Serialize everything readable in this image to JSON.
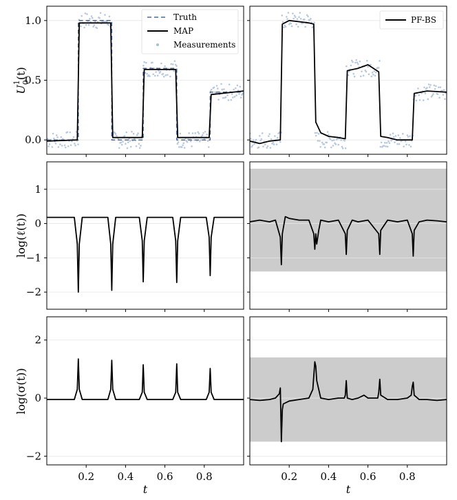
{
  "chart_data": [
    {
      "type": "line",
      "panel": "top-left",
      "ylabel": "U_0^1(t)",
      "ylim": [
        -0.12,
        1.12
      ],
      "yticks": [
        "0.0",
        "0.5",
        "1.0"
      ],
      "legend": {
        "location": "top-right",
        "entries": [
          "Truth",
          "MAP",
          "Measurements"
        ]
      },
      "series": [
        {
          "name": "Truth",
          "style": "dashed",
          "color": "#4a6a9a",
          "x": [
            0,
            0.16,
            0.16,
            0.33,
            0.33,
            0.49,
            0.49,
            0.66,
            0.66,
            0.83,
            0.83,
            1.0
          ],
          "y": [
            0,
            0,
            1.0,
            1.0,
            0,
            0,
            0.6,
            0.6,
            0,
            0,
            0.4,
            0.4
          ]
        },
        {
          "name": "MAP",
          "style": "solid",
          "color": "#000000",
          "x": [
            0,
            0.155,
            0.165,
            0.325,
            0.335,
            0.485,
            0.495,
            0.655,
            0.665,
            0.825,
            0.835,
            1.0
          ],
          "y": [
            -0.01,
            0.0,
            0.98,
            0.98,
            0.02,
            0.02,
            0.59,
            0.59,
            0.02,
            0.02,
            0.38,
            0.41
          ]
        }
      ],
      "xlim": [
        0,
        1
      ]
    },
    {
      "type": "line",
      "panel": "top-right",
      "ylim": [
        -0.12,
        1.12
      ],
      "legend": {
        "location": "top-right",
        "entries": [
          "PF-BS"
        ]
      },
      "series": [
        {
          "name": "PF-BS",
          "style": "solid",
          "color": "#000000",
          "x": [
            0,
            0.05,
            0.1,
            0.155,
            0.165,
            0.2,
            0.25,
            0.3,
            0.325,
            0.335,
            0.36,
            0.4,
            0.45,
            0.485,
            0.495,
            0.55,
            0.6,
            0.655,
            0.665,
            0.7,
            0.75,
            0.8,
            0.825,
            0.835,
            0.9,
            1.0
          ],
          "y": [
            -0.01,
            -0.03,
            -0.01,
            0.0,
            0.97,
            1.0,
            0.99,
            0.98,
            0.97,
            0.15,
            0.06,
            0.03,
            0.02,
            0.01,
            0.58,
            0.6,
            0.63,
            0.57,
            0.03,
            0.02,
            0.0,
            0.0,
            0.0,
            0.39,
            0.41,
            0.4
          ]
        }
      ],
      "xlim": [
        0,
        1
      ]
    },
    {
      "type": "line",
      "panel": "middle-left",
      "ylabel": "log(ℓ(t))",
      "ylim": [
        -2.5,
        1.8
      ],
      "yticks": [
        "−2",
        "−1",
        "0",
        "1"
      ],
      "series": [
        {
          "name": "",
          "style": "solid",
          "color": "#000000",
          "x": [
            0,
            0.14,
            0.155,
            0.16,
            0.165,
            0.18,
            0.31,
            0.325,
            0.33,
            0.335,
            0.35,
            0.47,
            0.485,
            0.49,
            0.495,
            0.51,
            0.64,
            0.655,
            0.66,
            0.665,
            0.68,
            0.81,
            0.825,
            0.83,
            0.835,
            0.85,
            1.0
          ],
          "y": [
            0.18,
            0.18,
            -0.6,
            -2.0,
            -0.6,
            0.18,
            0.18,
            -0.6,
            -1.95,
            -0.6,
            0.18,
            0.18,
            -0.5,
            -1.7,
            -0.5,
            0.18,
            0.18,
            -0.5,
            -1.72,
            -0.5,
            0.18,
            0.18,
            -0.4,
            -1.52,
            -0.4,
            0.18,
            0.18
          ]
        }
      ],
      "xlim": [
        0,
        1
      ]
    },
    {
      "type": "area",
      "panel": "middle-right",
      "ylim": [
        -2.5,
        1.8
      ],
      "band": {
        "color": "#cccccc",
        "lower": -1.4,
        "upper": 1.6
      },
      "series": [
        {
          "name": "",
          "style": "solid",
          "color": "#000000",
          "x": [
            0,
            0.05,
            0.1,
            0.13,
            0.155,
            0.16,
            0.165,
            0.18,
            0.2,
            0.25,
            0.3,
            0.325,
            0.33,
            0.335,
            0.34,
            0.35,
            0.36,
            0.4,
            0.45,
            0.485,
            0.49,
            0.495,
            0.52,
            0.55,
            0.6,
            0.655,
            0.66,
            0.665,
            0.7,
            0.75,
            0.8,
            0.825,
            0.83,
            0.835,
            0.86,
            0.9,
            0.95,
            1.0
          ],
          "y": [
            0.05,
            0.1,
            0.05,
            0.1,
            -0.4,
            -1.2,
            -0.3,
            0.2,
            0.15,
            0.1,
            0.1,
            -0.3,
            -0.75,
            -0.3,
            -0.6,
            -0.2,
            0.1,
            0.05,
            0.1,
            -0.3,
            -0.9,
            -0.2,
            0.1,
            0.05,
            0.1,
            -0.3,
            -0.9,
            -0.2,
            0.1,
            0.05,
            0.1,
            -0.3,
            -0.95,
            -0.2,
            0.05,
            0.1,
            0.08,
            0.05
          ]
        }
      ],
      "xlim": [
        0,
        1
      ]
    },
    {
      "type": "line",
      "panel": "bottom-left",
      "ylabel": "log(σ(t))",
      "ylim": [
        -2.3,
        2.8
      ],
      "yticks": [
        "−2",
        "0",
        "2"
      ],
      "xlabel": "t",
      "xticks": [
        "0.2",
        "0.4",
        "0.6",
        "0.8"
      ],
      "series": [
        {
          "name": "",
          "style": "solid",
          "color": "#000000",
          "x": [
            0,
            0.14,
            0.155,
            0.16,
            0.165,
            0.18,
            0.31,
            0.325,
            0.33,
            0.335,
            0.35,
            0.47,
            0.485,
            0.49,
            0.495,
            0.51,
            0.64,
            0.655,
            0.66,
            0.665,
            0.68,
            0.81,
            0.825,
            0.83,
            0.835,
            0.85,
            1.0
          ],
          "y": [
            -0.05,
            -0.05,
            0.3,
            1.35,
            0.3,
            -0.05,
            -0.05,
            0.3,
            1.3,
            0.3,
            -0.05,
            -0.05,
            0.2,
            1.15,
            0.2,
            -0.05,
            -0.05,
            0.2,
            1.18,
            0.2,
            -0.05,
            -0.05,
            0.2,
            1.02,
            0.2,
            -0.05,
            -0.05
          ]
        }
      ],
      "xlim": [
        0,
        1
      ]
    },
    {
      "type": "area",
      "panel": "bottom-right",
      "ylim": [
        -2.3,
        2.8
      ],
      "xlabel": "t",
      "xticks": [
        "0.2",
        "0.4",
        "0.6",
        "0.8"
      ],
      "band": {
        "color": "#cccccc",
        "lower": -1.5,
        "upper": 1.4
      },
      "series": [
        {
          "name": "",
          "style": "solid",
          "color": "#000000",
          "x": [
            0,
            0.05,
            0.1,
            0.13,
            0.15,
            0.155,
            0.16,
            0.165,
            0.17,
            0.2,
            0.25,
            0.3,
            0.32,
            0.33,
            0.335,
            0.34,
            0.36,
            0.4,
            0.45,
            0.48,
            0.485,
            0.49,
            0.495,
            0.52,
            0.55,
            0.58,
            0.6,
            0.65,
            0.655,
            0.66,
            0.665,
            0.7,
            0.75,
            0.8,
            0.82,
            0.825,
            0.83,
            0.835,
            0.86,
            0.9,
            0.95,
            1.0
          ],
          "y": [
            -0.05,
            -0.08,
            -0.05,
            0.0,
            0.15,
            0.35,
            -1.5,
            -0.4,
            -0.2,
            -0.1,
            -0.05,
            0.0,
            0.3,
            1.25,
            1.1,
            0.6,
            0.0,
            -0.05,
            0.0,
            0.0,
            0.1,
            0.6,
            0.0,
            -0.05,
            0.0,
            0.1,
            0.0,
            0.0,
            0.2,
            0.65,
            0.1,
            -0.05,
            -0.05,
            0.0,
            0.1,
            0.4,
            0.55,
            0.1,
            -0.05,
            -0.05,
            -0.08,
            -0.05
          ]
        }
      ],
      "xlim": [
        0,
        1
      ]
    }
  ],
  "labels": {
    "ylabel_top": "U",
    "ylabel_top_sub": "0",
    "ylabel_top_sup": "1",
    "ylabel_top_arg": "(t)",
    "ylabel_mid": "log(ℓ(t))",
    "ylabel_bot": "log(σ(t))",
    "xlabel": "t",
    "legend_truth": "Truth",
    "legend_map": "MAP",
    "legend_meas": "Measurements",
    "legend_pfbs": "PF-BS"
  }
}
